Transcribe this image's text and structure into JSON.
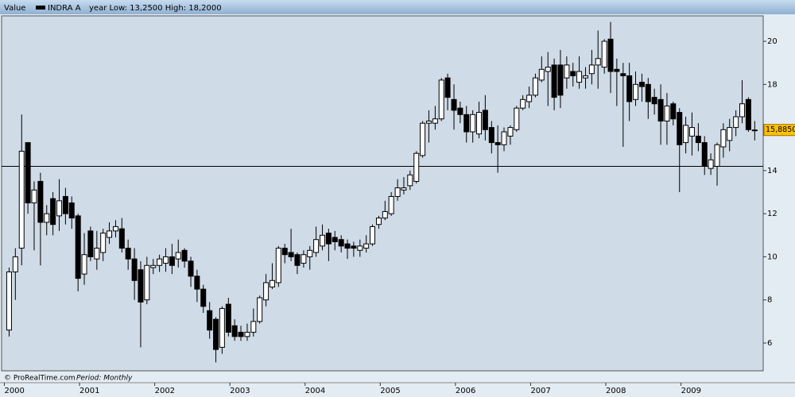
{
  "chart_data": {
    "type": "candlestick",
    "title": "Value",
    "subtitle": "year Low: 13,2500 High: 18,2000",
    "source": "© ProRealTime.com",
    "period": "Period: Monthly",
    "series": [
      {
        "name": "INDRA A",
        "color": "#000000",
        "up_color": "#ffffff",
        "x": [
          2000,
          2000.083,
          2000.167,
          2000.25,
          2000.333,
          2000.417,
          2000.5,
          2000.583,
          2000.667,
          2000.75,
          2000.833,
          2000.917,
          2001,
          2001.083,
          2001.167,
          2001.25,
          2001.333,
          2001.417,
          2001.5,
          2001.583,
          2001.667,
          2001.75,
          2001.833,
          2001.917,
          2002,
          2002.083,
          2002.167,
          2002.25,
          2002.333,
          2002.417,
          2002.5,
          2002.583,
          2002.667,
          2002.75,
          2002.833,
          2002.917,
          2003,
          2003.083,
          2003.167,
          2003.25,
          2003.333,
          2003.417,
          2003.5,
          2003.583,
          2003.667,
          2003.75,
          2003.833,
          2003.917,
          2004,
          2004.083,
          2004.167,
          2004.25,
          2004.333,
          2004.417,
          2004.5,
          2004.583,
          2004.667,
          2004.75,
          2004.833,
          2004.917,
          2005,
          2005.083,
          2005.167,
          2005.25,
          2005.333,
          2005.417,
          2005.5,
          2005.583,
          2005.667,
          2005.75,
          2005.833,
          2005.917,
          2006,
          2006.083,
          2006.167,
          2006.25,
          2006.333,
          2006.417,
          2006.5,
          2006.583,
          2006.667,
          2006.75,
          2006.833,
          2006.917,
          2007,
          2007.083,
          2007.167,
          2007.25,
          2007.333,
          2007.417,
          2007.5,
          2007.583,
          2007.667,
          2007.75,
          2007.833,
          2007.917,
          2008,
          2008.083,
          2008.167,
          2008.25,
          2008.333,
          2008.417,
          2008.5,
          2008.583,
          2008.667,
          2008.75,
          2008.833,
          2008.917,
          2009,
          2009.083,
          2009.167,
          2009.25,
          2009.333,
          2009.417,
          2009.5,
          2009.583,
          2009.667,
          2009.75,
          2009.833,
          2009.917
        ],
        "open": [
          6.6,
          9.3,
          10.4,
          15.3,
          12.5,
          13.5,
          11.6,
          12.7,
          11.9,
          12.8,
          12.5,
          11.9,
          9.2,
          11.2,
          9.9,
          10.2,
          10.9,
          11.2,
          11.3,
          10.4,
          9.9,
          9.4,
          8.0,
          9.5,
          9.6,
          9.7,
          10.0,
          9.9,
          10.3,
          9.8,
          9.1,
          8.5,
          7.5,
          7.1,
          5.8,
          7.8,
          6.8,
          6.5,
          6.3,
          6.5,
          7.0,
          8.0,
          8.6,
          8.8,
          10.4,
          10.2,
          10.1,
          9.7,
          10.0,
          10.2,
          10.5,
          11.1,
          10.9,
          10.8,
          10.6,
          10.5,
          10.3,
          10.4,
          10.6,
          11.5,
          11.8,
          12.0,
          12.8,
          13.1,
          13.3,
          13.5,
          14.7,
          16.2,
          16.2,
          16.4,
          18.3,
          17.3,
          16.9,
          16.6,
          15.8,
          15.7,
          16.8,
          16.0,
          15.3,
          15.2,
          15.6,
          15.9,
          16.9,
          17.2,
          17.5,
          18.2,
          18.6,
          18.9,
          18.9,
          18.3,
          18.6,
          18.1,
          18.3,
          18.5,
          18.9,
          18.8,
          20.1,
          18.7,
          18.5,
          18.4,
          17.3,
          18.1,
          18.0,
          17.4,
          17.3,
          16.3,
          17.1,
          16.7,
          15.3,
          15.6,
          15.6,
          15.3,
          14.1,
          14.2,
          15.1,
          15.4,
          16.0,
          16.5,
          17.3,
          15.85
        ],
        "high": [
          9.5,
          10.4,
          16.6,
          15.3,
          13.5,
          13.9,
          12.4,
          13.0,
          13.6,
          13.2,
          12.8,
          12.0,
          11.1,
          11.4,
          11.2,
          11.3,
          11.6,
          11.7,
          11.8,
          10.8,
          10.4,
          9.8,
          10.0,
          9.9,
          10.1,
          10.4,
          10.6,
          10.8,
          10.4,
          10.0,
          9.4,
          8.7,
          7.9,
          7.2,
          7.7,
          8.1,
          7.1,
          6.8,
          6.9,
          7.6,
          8.2,
          9.2,
          9.7,
          10.5,
          10.6,
          11.3,
          10.2,
          10.3,
          10.5,
          11.4,
          11.5,
          11.3,
          11.2,
          11.0,
          10.8,
          10.7,
          10.8,
          11.0,
          11.5,
          11.9,
          12.6,
          13.0,
          13.6,
          13.7,
          14.0,
          14.9,
          16.3,
          16.8,
          17.0,
          18.3,
          18.5,
          18.0,
          17.2,
          17.0,
          16.8,
          17.2,
          17.5,
          16.3,
          16.1,
          16.0,
          16.1,
          17.0,
          17.5,
          17.9,
          18.5,
          19.3,
          19.5,
          19.2,
          19.6,
          19.3,
          19.0,
          19.3,
          18.8,
          19.6,
          20.5,
          20.1,
          20.9,
          19.2,
          19.0,
          19.0,
          18.6,
          18.5,
          18.3,
          17.8,
          18.0,
          17.6,
          17.2,
          16.9,
          16.5,
          16.7,
          16.2,
          15.6,
          14.8,
          15.3,
          16.2,
          16.4,
          16.8,
          18.2,
          17.4,
          16.3
        ],
        "low": [
          6.3,
          8.0,
          9.6,
          12.0,
          10.3,
          9.6,
          11.0,
          11.0,
          11.2,
          11.5,
          11.3,
          8.4,
          8.7,
          9.8,
          9.4,
          9.8,
          10.6,
          10.9,
          10.2,
          9.4,
          8.0,
          5.8,
          7.8,
          9.2,
          9.3,
          9.3,
          9.2,
          9.5,
          9.5,
          8.6,
          7.9,
          7.4,
          6.2,
          5.1,
          5.5,
          6.3,
          6.1,
          6.1,
          6.1,
          6.3,
          6.9,
          7.7,
          8.5,
          8.6,
          9.7,
          9.8,
          9.2,
          9.5,
          9.4,
          10.0,
          10.3,
          9.8,
          10.3,
          10.2,
          9.9,
          10.0,
          10.0,
          10.2,
          10.5,
          11.3,
          11.7,
          11.9,
          12.6,
          12.9,
          13.1,
          13.4,
          14.6,
          15.3,
          15.9,
          16.3,
          16.8,
          15.9,
          16.2,
          15.3,
          15.3,
          15.5,
          15.4,
          14.8,
          13.9,
          14.9,
          15.2,
          15.8,
          16.8,
          16.9,
          17.4,
          18.1,
          17.0,
          16.8,
          16.9,
          17.8,
          17.9,
          17.8,
          17.8,
          18.0,
          17.8,
          18.5,
          17.6,
          17.0,
          15.1,
          16.3,
          17.0,
          17.2,
          16.4,
          16.6,
          15.2,
          15.2,
          16.1,
          13.0,
          14.8,
          14.7,
          14.9,
          13.8,
          13.8,
          13.3,
          14.6,
          14.9,
          15.6,
          16.2,
          15.8,
          15.4
        ],
        "close": [
          9.3,
          10.0,
          14.9,
          12.5,
          13.1,
          11.6,
          12.0,
          11.5,
          12.6,
          12.0,
          11.8,
          9.0,
          10.1,
          10.0,
          10.4,
          11.1,
          11.2,
          11.4,
          10.4,
          9.9,
          8.9,
          7.9,
          9.6,
          9.6,
          9.9,
          10.0,
          9.6,
          10.2,
          9.8,
          9.1,
          8.5,
          7.7,
          6.6,
          5.7,
          7.6,
          6.5,
          6.3,
          6.3,
          6.5,
          7.0,
          8.1,
          8.8,
          8.9,
          10.4,
          10.1,
          10.0,
          9.6,
          10.1,
          10.3,
          10.8,
          11.0,
          10.6,
          10.7,
          10.5,
          10.4,
          10.4,
          10.5,
          10.6,
          11.4,
          11.8,
          12.1,
          12.8,
          13.2,
          13.2,
          13.8,
          14.8,
          16.2,
          16.3,
          16.4,
          18.2,
          17.4,
          16.8,
          16.6,
          15.8,
          16.6,
          16.7,
          15.9,
          15.3,
          15.2,
          15.8,
          16.0,
          16.9,
          17.3,
          17.5,
          18.3,
          18.7,
          18.8,
          17.4,
          17.5,
          18.9,
          18.4,
          18.6,
          18.4,
          18.9,
          19.2,
          20.0,
          18.6,
          18.6,
          18.4,
          17.2,
          18.0,
          17.9,
          17.2,
          17.1,
          16.3,
          17.0,
          16.4,
          15.2,
          16.1,
          16.0,
          15.3,
          14.2,
          14.5,
          15.2,
          15.9,
          16.0,
          16.5,
          17.1,
          15.9,
          15.885
        ]
      }
    ],
    "xlim": [
      1999.9,
      2010.03
    ],
    "xticks": [
      2000,
      2001,
      2002,
      2003,
      2004,
      2005,
      2006,
      2007,
      2008,
      2009
    ],
    "ylim": [
      4.71,
      21.18
    ],
    "yticks": [
      6,
      8,
      10,
      12,
      14,
      16,
      18,
      20
    ],
    "hline": 14.2,
    "last": {
      "value": 15.885,
      "label": "15,8850"
    },
    "last_color": "#ffc000",
    "grid": false
  }
}
